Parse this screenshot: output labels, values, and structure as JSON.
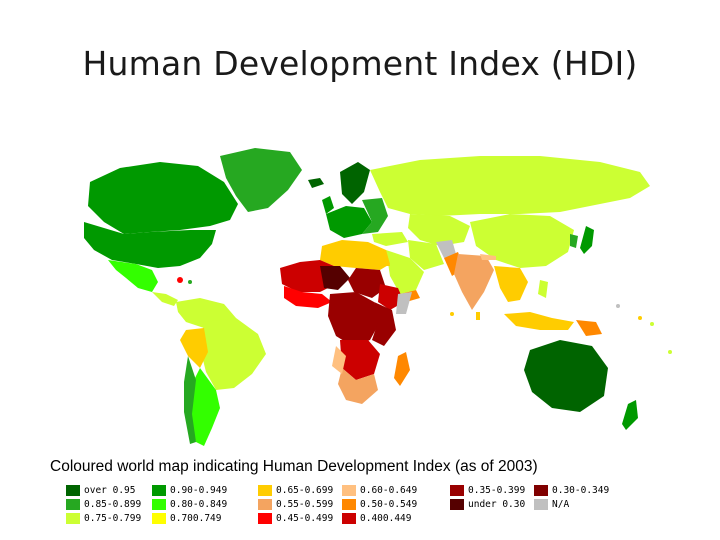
{
  "title": "Human Development Index (HDI)",
  "caption": "Coloured world map indicating Human Development Index (as of 2003)",
  "legend": [
    {
      "label": "over 0.95",
      "color": "#006400"
    },
    {
      "label": "0.85-0.899",
      "color": "#26a821"
    },
    {
      "label": "0.75-0.799",
      "color": "#ccff33"
    },
    {
      "label": "0.90-0.949",
      "color": "#009900"
    },
    {
      "label": "0.80-0.849",
      "color": "#33ff00"
    },
    {
      "label": "0.700.749",
      "color": "#ffff00"
    },
    {
      "label": "0.65-0.699",
      "color": "#ffcc00"
    },
    {
      "label": "0.55-0.599",
      "color": "#f4a460"
    },
    {
      "label": "0.45-0.499",
      "color": "#ff0000"
    },
    {
      "label": "0.60-0.649",
      "color": "#ffc080"
    },
    {
      "label": "0.50-0.549",
      "color": "#ff8800"
    },
    {
      "label": "0.400.449",
      "color": "#cc0000"
    },
    {
      "label": "0.35-0.399",
      "color": "#990000"
    },
    {
      "label": "under 0.30",
      "color": "#550000"
    },
    {
      "label": "0.30-0.349",
      "color": "#800000"
    },
    {
      "label": "N/A",
      "color": "#c0c0c0"
    }
  ]
}
